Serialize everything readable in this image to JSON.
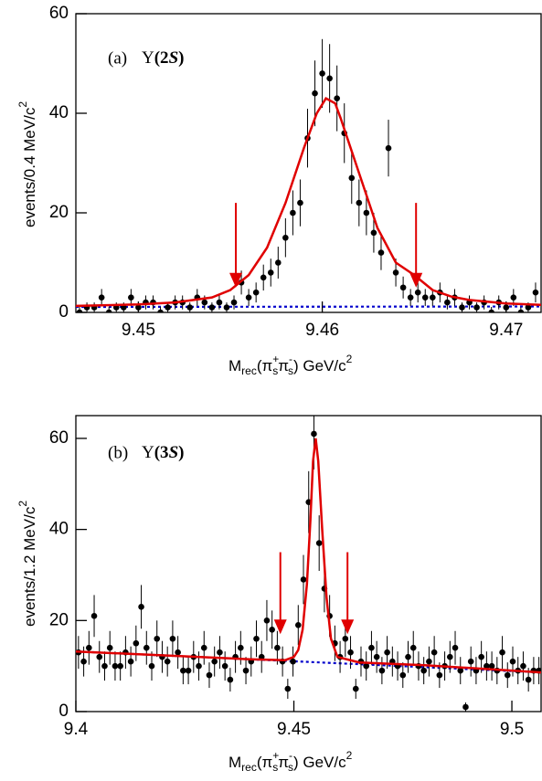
{
  "chart_data": [
    {
      "type": "errorbar",
      "panel_label": "(a)",
      "state": [
        "Υ",
        "(2",
        "S",
        ")"
      ],
      "xlabel": [
        "M",
        "rec",
        "(π",
        "+",
        "s",
        "π",
        "-",
        "s",
        ") GeV/c",
        "2"
      ],
      "ylabel": [
        "events/0.4 MeV/c",
        "2"
      ],
      "xlim": [
        9.4466,
        9.4719
      ],
      "ylim": [
        0,
        60
      ],
      "xticks": [
        9.45,
        9.46,
        9.47
      ],
      "yticks": [
        0,
        20,
        40,
        60
      ],
      "color": "#000000",
      "x": [
        9.4468,
        9.4472,
        9.4476,
        9.448,
        9.4484,
        9.4488,
        9.4492,
        9.4496,
        9.45,
        9.4504,
        9.4508,
        9.4512,
        9.4516,
        9.452,
        9.4524,
        9.4528,
        9.4532,
        9.4536,
        9.454,
        9.4544,
        9.4548,
        9.4552,
        9.4556,
        9.456,
        9.4564,
        9.4568,
        9.4572,
        9.4576,
        9.458,
        9.4584,
        9.4588,
        9.4592,
        9.4596,
        9.46,
        9.4604,
        9.4608,
        9.4612,
        9.4616,
        9.462,
        9.4624,
        9.4628,
        9.4632,
        9.4636,
        9.464,
        9.4644,
        9.4648,
        9.4652,
        9.4656,
        9.466,
        9.4664,
        9.4668,
        9.4672,
        9.4676,
        9.468,
        9.4684,
        9.4688,
        9.4692,
        9.4696,
        9.47,
        9.4704,
        9.4708,
        9.4712,
        9.4716
      ],
      "values": [
        0,
        1,
        1,
        3,
        0,
        1,
        1,
        3,
        1,
        2,
        2,
        0,
        1,
        2,
        2,
        1,
        3,
        2,
        1,
        2,
        1,
        2,
        6,
        3,
        4,
        7,
        8,
        10,
        15,
        20,
        22,
        35,
        44,
        48,
        47,
        43,
        36,
        27,
        22,
        20,
        16,
        12,
        33,
        8,
        5,
        3,
        4,
        3,
        3,
        4,
        2,
        3,
        1,
        2,
        1,
        2,
        0,
        2,
        1,
        3,
        0,
        1,
        4
      ],
      "errors": [
        1.1,
        1,
        1,
        1.7,
        1.1,
        1,
        1,
        1.7,
        1,
        1.4,
        1.4,
        1.1,
        1,
        1.4,
        1.4,
        1,
        1.7,
        1.4,
        1,
        1.4,
        1,
        1.4,
        2.4,
        1.7,
        2,
        2.6,
        2.8,
        3.2,
        3.9,
        4.5,
        4.7,
        5.9,
        6.6,
        6.9,
        6.9,
        6.6,
        6,
        5.2,
        4.7,
        4.5,
        4,
        3.5,
        5.7,
        2.8,
        2.2,
        1.7,
        2,
        1.7,
        1.7,
        2,
        1.4,
        1.7,
        1,
        1.4,
        1,
        1.4,
        1.1,
        1.4,
        1,
        1.7,
        1.1,
        1,
        2
      ],
      "fit": {
        "color": "#e00000",
        "x": [
          9.4466,
          9.45,
          9.452,
          9.454,
          9.455,
          9.456,
          9.457,
          9.458,
          9.459,
          9.4597,
          9.4602,
          9.4607,
          9.461,
          9.462,
          9.463,
          9.464,
          9.465,
          9.466,
          9.467,
          9.468,
          9.47,
          9.4719
        ],
        "values": [
          1.3,
          1.6,
          2,
          3,
          4.5,
          7.5,
          13,
          22,
          33,
          40,
          43,
          42,
          39,
          28,
          17,
          10,
          7.5,
          4.5,
          3.2,
          2.5,
          1.8,
          1.5
        ]
      },
      "background": {
        "color": "#0000cc",
        "x": [
          9.4466,
          9.4719
        ],
        "values": [
          1.1,
          1.2
        ]
      },
      "arrows": {
        "color": "#e00000",
        "x": [
          9.4553,
          9.4651
        ],
        "y": [
          22,
          5
        ]
      }
    },
    {
      "type": "errorbar",
      "panel_label": "(b)",
      "state": [
        "Υ",
        "(3",
        "S",
        ")"
      ],
      "xlabel": [
        "M",
        "rec",
        "(π",
        "+",
        "s",
        "π",
        "-",
        "s",
        ") GeV/c",
        "2"
      ],
      "ylabel": [
        "events/1.2 MeV/c",
        "2"
      ],
      "xlim": [
        9.4,
        9.5067
      ],
      "ylim": [
        0,
        65
      ],
      "xticks": [
        9.4,
        9.45,
        9.5
      ],
      "yticks": [
        0,
        20,
        40,
        60
      ],
      "color": "#000000",
      "x": [
        9.4006,
        9.4018,
        9.403,
        9.4042,
        9.4054,
        9.4066,
        9.4078,
        9.409,
        9.4102,
        9.4114,
        9.4126,
        9.4138,
        9.415,
        9.4162,
        9.4174,
        9.4186,
        9.4198,
        9.421,
        9.4222,
        9.4234,
        9.4246,
        9.4258,
        9.427,
        9.4282,
        9.4294,
        9.4306,
        9.4318,
        9.433,
        9.4342,
        9.4354,
        9.4366,
        9.4378,
        9.439,
        9.4402,
        9.4414,
        9.4426,
        9.4438,
        9.445,
        9.4462,
        9.4474,
        9.4486,
        9.4498,
        9.451,
        9.4522,
        9.4534,
        9.4546,
        9.4558,
        9.457,
        9.4582,
        9.4594,
        9.4606,
        9.4618,
        9.463,
        9.4642,
        9.4654,
        9.4666,
        9.4678,
        9.469,
        9.4702,
        9.4714,
        9.4726,
        9.4738,
        9.475,
        9.4762,
        9.4774,
        9.4786,
        9.4798,
        9.481,
        9.4822,
        9.4834,
        9.4846,
        9.4858,
        9.487,
        9.4882,
        9.4894,
        9.4906,
        9.4918,
        9.493,
        9.4942,
        9.4954,
        9.4966,
        9.4978,
        9.499,
        9.5002,
        9.5014,
        9.5026,
        9.5038,
        9.505,
        9.5062
      ],
      "values": [
        13,
        11,
        14,
        21,
        12,
        10,
        14,
        10,
        10,
        13,
        11,
        15,
        23,
        14,
        10,
        16,
        12,
        11,
        16,
        13,
        9,
        9,
        12,
        10,
        14,
        8,
        11,
        13,
        10,
        7,
        12,
        14,
        9,
        11,
        16,
        12,
        20,
        18,
        14,
        11,
        5,
        11,
        19,
        29,
        46,
        61,
        37,
        27,
        21,
        15,
        12,
        16,
        13,
        5,
        11,
        10,
        14,
        12,
        9,
        13,
        11,
        10,
        8,
        12,
        14,
        10,
        9,
        11,
        13,
        8,
        10,
        12,
        14,
        9,
        1,
        11,
        9,
        12,
        10,
        10,
        9,
        13,
        8,
        11,
        9,
        10,
        7,
        9,
        9
      ],
      "errors": [
        3.6,
        3.3,
        3.7,
        4.6,
        3.5,
        3.2,
        3.7,
        3.2,
        3.2,
        3.6,
        3.3,
        3.9,
        4.8,
        3.7,
        3.2,
        4,
        3.5,
        3.3,
        4,
        3.6,
        3,
        3,
        3.5,
        3.2,
        3.7,
        2.8,
        3.3,
        3.6,
        3.2,
        2.6,
        3.5,
        3.7,
        3,
        3.3,
        4,
        3.5,
        4.5,
        4.2,
        3.7,
        3.3,
        2.2,
        3.3,
        4.4,
        5.4,
        6.8,
        7.8,
        6.1,
        5.2,
        4.6,
        3.9,
        3.5,
        4,
        3.6,
        2.2,
        3.3,
        3.2,
        3.7,
        3.5,
        3,
        3.6,
        3.3,
        3.2,
        2.8,
        3.5,
        3.7,
        3.2,
        3,
        3.3,
        3.6,
        2.8,
        3.2,
        3.5,
        3.7,
        3,
        1,
        3.3,
        3,
        3.5,
        3.2,
        3.2,
        3,
        3.6,
        2.8,
        3.3,
        3,
        3.2,
        2.6,
        3,
        3
      ],
      "fit": {
        "color": "#e00000",
        "x": [
          9.4,
          9.44,
          9.448,
          9.45,
          9.451,
          9.452,
          9.453,
          9.4538,
          9.4544,
          9.455,
          9.4556,
          9.4565,
          9.4575,
          9.4585,
          9.46,
          9.465,
          9.48,
          9.5067
        ],
        "values": [
          13.2,
          11.5,
          11.3,
          12,
          13.5,
          18,
          28,
          42,
          55,
          60,
          55,
          40,
          25,
          16,
          12,
          10.8,
          10.2,
          8.6
        ]
      },
      "background": {
        "color": "#0000cc",
        "x": [
          9.4,
          9.5067
        ],
        "values": [
          13.2,
          8.6
        ]
      },
      "arrows": {
        "color": "#e00000",
        "x": [
          9.4469,
          9.4623
        ],
        "y": [
          35,
          17
        ]
      }
    }
  ]
}
